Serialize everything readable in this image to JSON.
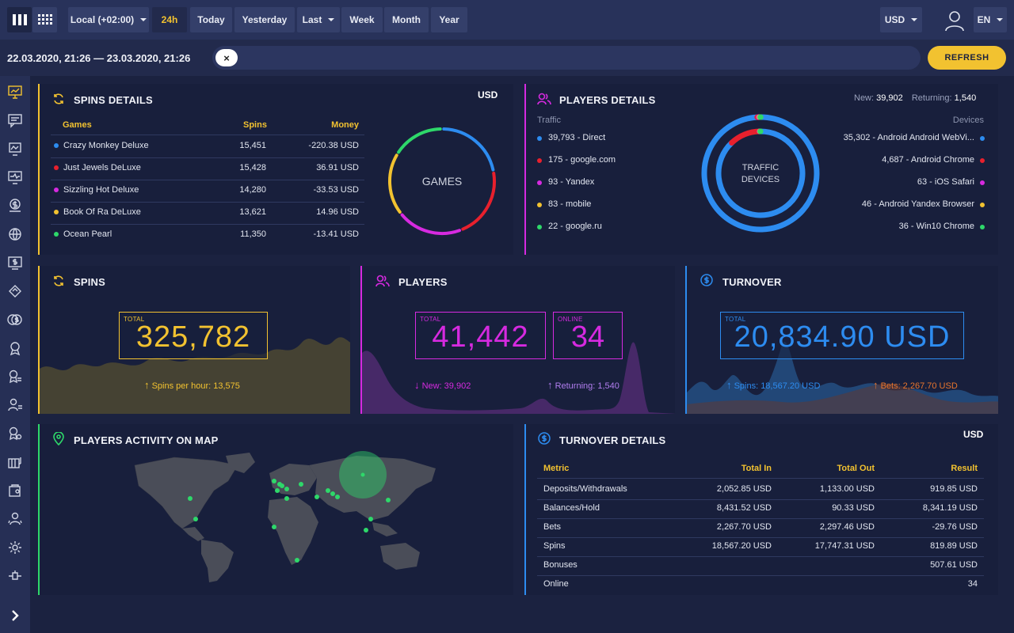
{
  "toolbar": {
    "timezone": "Local (+02:00)",
    "ranges": [
      "24h",
      "Today",
      "Yesterday",
      "Last",
      "Week",
      "Month",
      "Year"
    ],
    "active_range": "24h",
    "currency": "USD",
    "language": "EN"
  },
  "datebar": {
    "range_text": "22.03.2020, 21:26 — 23.03.2020, 21:26",
    "clear_symbol": "×",
    "refresh_label": "REFRESH"
  },
  "spins_details": {
    "title": "SPINS DETAILS",
    "currency": "USD",
    "headers": [
      "Games",
      "Spins",
      "Money"
    ],
    "rows": [
      {
        "game": "Crazy Monkey Deluxe",
        "spins": "15,451",
        "money": "-220.38 USD",
        "color": "#2d8cf0"
      },
      {
        "game": "Just Jewels DeLuxe",
        "spins": "15,428",
        "money": "36.91 USD",
        "color": "#e8202d"
      },
      {
        "game": "Sizzling Hot Deluxe",
        "spins": "14,280",
        "money": "-33.53 USD",
        "color": "#d62ae0"
      },
      {
        "game": "Book Of Ra DeLuxe",
        "spins": "13,621",
        "money": "14.96 USD",
        "color": "#f2c230"
      },
      {
        "game": "Ocean Pearl",
        "spins": "11,350",
        "money": "-13.41 USD",
        "color": "#2ed86a"
      }
    ],
    "donut_label": "GAMES"
  },
  "players_details": {
    "title": "PLAYERS DETAILS",
    "new_label": "New:",
    "new_value": "39,902",
    "returning_label": "Returning:",
    "returning_value": "1,540",
    "traffic_label": "Traffic",
    "devices_label": "Devices",
    "traffic": [
      {
        "text": "39,793 - Direct",
        "color": "#2d8cf0"
      },
      {
        "text": "175 - google.com",
        "color": "#e8202d"
      },
      {
        "text": "93 - Yandex",
        "color": "#d62ae0"
      },
      {
        "text": "83 - mobile",
        "color": "#f2c230"
      },
      {
        "text": "22 - google.ru",
        "color": "#2ed86a"
      }
    ],
    "devices": [
      {
        "text": "35,302 - Android Android WebVi...",
        "color": "#2d8cf0"
      },
      {
        "text": "4,687 - Android Chrome",
        "color": "#e8202d"
      },
      {
        "text": "63 - iOS Safari",
        "color": "#d62ae0"
      },
      {
        "text": "46 - Android Yandex Browser",
        "color": "#f2c230"
      },
      {
        "text": "36 - Win10 Chrome",
        "color": "#2ed86a"
      }
    ],
    "donut_label_1": "TRAFFIC",
    "donut_label_2": "DEVICES"
  },
  "spins": {
    "title": "SPINS",
    "total_tag": "TOTAL",
    "total": "325,782",
    "per_hour": "Spins per hour: 13,575"
  },
  "players": {
    "title": "PLAYERS",
    "total_tag": "TOTAL",
    "total": "41,442",
    "online_tag": "ONLINE",
    "online": "34",
    "new": "New: 39,902",
    "returning": "Returning: 1,540"
  },
  "turnover": {
    "title": "TURNOVER",
    "total_tag": "TOTAL",
    "total": "20,834.90 USD",
    "spins": "Spins: 18,567.20 USD",
    "bets": "Bets: 2,267.70 USD"
  },
  "map_panel": {
    "title": "PLAYERS ACTIVITY ON MAP"
  },
  "turnover_details": {
    "title": "TURNOVER DETAILS",
    "currency": "USD",
    "headers": [
      "Metric",
      "Total In",
      "Total Out",
      "Result"
    ],
    "rows": [
      {
        "metric": "Deposits/Withdrawals",
        "in": "2,052.85 USD",
        "out": "1,133.00 USD",
        "result": "919.85 USD"
      },
      {
        "metric": "Balances/Hold",
        "in": "8,431.52 USD",
        "out": "90.33 USD",
        "result": "8,341.19 USD"
      },
      {
        "metric": "Bets",
        "in": "2,267.70 USD",
        "out": "2,297.46 USD",
        "result": "-29.76 USD"
      },
      {
        "metric": "Spins",
        "in": "18,567.20 USD",
        "out": "17,747.31 USD",
        "result": "819.89 USD"
      },
      {
        "metric": "Bonuses",
        "in": "",
        "out": "",
        "result": "507.61 USD"
      },
      {
        "metric": "Online",
        "in": "",
        "out": "",
        "result": "34"
      }
    ]
  },
  "colors": {
    "accent_yellow": "#f2c230",
    "accent_magenta": "#d62ae0",
    "accent_blue": "#2d8cf0",
    "accent_green": "#2ed86a"
  }
}
